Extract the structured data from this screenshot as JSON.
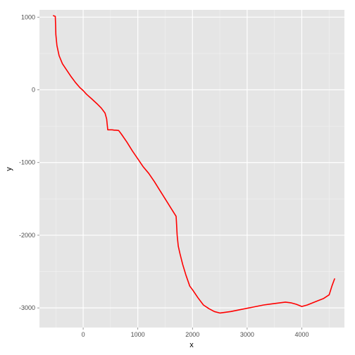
{
  "chart_data": {
    "type": "line",
    "title": "",
    "xlabel": "x",
    "ylabel": "y",
    "xlim": [
      -800,
      4780
    ],
    "ylim": [
      -3270,
      1100
    ],
    "x_ticks": [
      0,
      1000,
      2000,
      3000,
      4000
    ],
    "y_ticks": [
      -3000,
      -2000,
      -1000,
      0,
      1000
    ],
    "x_tick_labels": [
      "0",
      "1000",
      "2000",
      "3000",
      "4000"
    ],
    "y_tick_labels": [
      "-3000",
      "-2000",
      "-1000",
      "0",
      "1000"
    ],
    "grid": true,
    "legend": "none",
    "colors": {
      "panel_background": "#e5e5e5",
      "grid_major": "#ffffff",
      "grid_minor": "#f2f2f2",
      "line": "#ff0000",
      "tick_text": "#4d4d4d"
    },
    "series": [
      {
        "x": [
          -545,
          -510,
          -505,
          -500,
          -480,
          -440,
          -380,
          -300,
          -220,
          -140,
          -60,
          0,
          60,
          150,
          250,
          330,
          400,
          430,
          450,
          480,
          530,
          570,
          600,
          650,
          700,
          800,
          900,
          1000,
          1100,
          1200,
          1300,
          1400,
          1500,
          1600,
          1700,
          1705,
          1720,
          1740,
          1770,
          1820,
          1880,
          1950,
          2000,
          2100,
          2200,
          2300,
          2400,
          2500,
          2700,
          2900,
          3100,
          3300,
          3500,
          3700,
          3800,
          3900,
          4000,
          4100,
          4200,
          4300,
          4400,
          4500,
          4550,
          4600
        ],
        "y": [
          1020,
          1010,
          900,
          760,
          610,
          470,
          360,
          270,
          180,
          100,
          30,
          -10,
          -60,
          -120,
          -190,
          -250,
          -320,
          -400,
          -550,
          -550,
          -550,
          -555,
          -555,
          -560,
          -610,
          -720,
          -840,
          -950,
          -1060,
          -1150,
          -1260,
          -1380,
          -1500,
          -1620,
          -1740,
          -1800,
          -2000,
          -2150,
          -2250,
          -2400,
          -2550,
          -2700,
          -2750,
          -2860,
          -2960,
          -3010,
          -3050,
          -3070,
          -3050,
          -3020,
          -2990,
          -2960,
          -2940,
          -2920,
          -2930,
          -2950,
          -2980,
          -2960,
          -2930,
          -2900,
          -2870,
          -2820,
          -2700,
          -2600
        ]
      }
    ]
  }
}
